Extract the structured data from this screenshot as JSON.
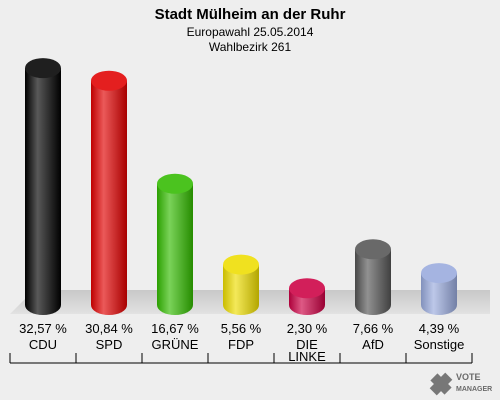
{
  "chart_data": {
    "type": "bar",
    "title": "Stadt Mülheim an der Ruhr",
    "subtitle_lines": [
      "Europawahl 25.05.2014",
      "Wahlbezirk 261"
    ],
    "categories": [
      {
        "label_lines": [
          "CDU"
        ]
      },
      {
        "label_lines": [
          "SPD"
        ]
      },
      {
        "label_lines": [
          "GRÜNE"
        ]
      },
      {
        "label_lines": [
          "FDP"
        ]
      },
      {
        "label_lines": [
          "DIE",
          "LINKE"
        ]
      },
      {
        "label_lines": [
          "AfD"
        ]
      },
      {
        "label_lines": [
          "Sonstige"
        ]
      }
    ],
    "values": [
      32.57,
      30.84,
      16.67,
      5.56,
      2.3,
      7.66,
      4.39
    ],
    "value_labels": [
      "32,57 %",
      "30,84 %",
      "16,67 %",
      "5,56 %",
      "2,30 %",
      "7,66 %",
      "4,39 %"
    ],
    "colors": [
      "#000000",
      "#e00000",
      "#33bb00",
      "#eedd00",
      "#cc0044",
      "#555555",
      "#99aadd"
    ],
    "xlabel": "",
    "ylabel": "",
    "ylim": [
      0,
      33
    ],
    "grid": false,
    "legend": "none"
  },
  "logo": {
    "line1": "VOTE",
    "line2": "MANAGER"
  }
}
